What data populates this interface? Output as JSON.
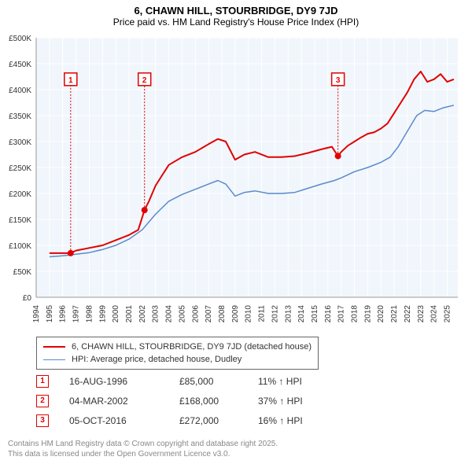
{
  "title_line1": "6, CHAWN HILL, STOURBRIDGE, DY9 7JD",
  "title_line2": "Price paid vs. HM Land Registry's House Price Index (HPI)",
  "chart": {
    "type": "line",
    "background_color": "#f0f6fc",
    "grid_color": "#ffffff",
    "xlim": [
      1994,
      2025.8
    ],
    "ylim": [
      0,
      500000
    ],
    "ytick_step": 50000,
    "yticks": [
      "£0",
      "£50K",
      "£100K",
      "£150K",
      "£200K",
      "£250K",
      "£300K",
      "£350K",
      "£400K",
      "£450K",
      "£500K"
    ],
    "xticks": [
      1994,
      1995,
      1996,
      1997,
      1998,
      1999,
      2000,
      2001,
      2002,
      2003,
      2004,
      2005,
      2006,
      2007,
      2008,
      2009,
      2010,
      2011,
      2012,
      2013,
      2014,
      2015,
      2016,
      2017,
      2018,
      2019,
      2020,
      2021,
      2022,
      2023,
      2024,
      2025
    ],
    "axis_fontsize": 11,
    "tick_fontsize": 10,
    "series": [
      {
        "name": "6, CHAWN HILL, STOURBRIDGE, DY9 7JD (detached house)",
        "color": "#e10000",
        "line_width": 2,
        "points": [
          [
            1995.0,
            85000
          ],
          [
            1996.6,
            85000
          ],
          [
            1997.0,
            90000
          ],
          [
            1998.0,
            95000
          ],
          [
            1999.0,
            100000
          ],
          [
            2000.0,
            110000
          ],
          [
            2001.0,
            120000
          ],
          [
            2001.7,
            130000
          ],
          [
            2002.17,
            168000
          ],
          [
            2002.5,
            185000
          ],
          [
            2003.0,
            215000
          ],
          [
            2003.5,
            235000
          ],
          [
            2004.0,
            255000
          ],
          [
            2005.0,
            270000
          ],
          [
            2006.0,
            280000
          ],
          [
            2007.0,
            295000
          ],
          [
            2007.7,
            305000
          ],
          [
            2008.3,
            300000
          ],
          [
            2009.0,
            265000
          ],
          [
            2009.7,
            275000
          ],
          [
            2010.5,
            280000
          ],
          [
            2011.5,
            270000
          ],
          [
            2012.5,
            270000
          ],
          [
            2013.5,
            272000
          ],
          [
            2014.5,
            278000
          ],
          [
            2015.5,
            285000
          ],
          [
            2016.3,
            290000
          ],
          [
            2016.76,
            272000
          ],
          [
            2017.0,
            280000
          ],
          [
            2017.5,
            292000
          ],
          [
            2018.0,
            300000
          ],
          [
            2018.5,
            308000
          ],
          [
            2019.0,
            315000
          ],
          [
            2019.5,
            318000
          ],
          [
            2020.0,
            325000
          ],
          [
            2020.5,
            335000
          ],
          [
            2021.0,
            355000
          ],
          [
            2021.5,
            375000
          ],
          [
            2022.0,
            395000
          ],
          [
            2022.5,
            420000
          ],
          [
            2023.0,
            435000
          ],
          [
            2023.5,
            415000
          ],
          [
            2024.0,
            420000
          ],
          [
            2024.5,
            430000
          ],
          [
            2025.0,
            415000
          ],
          [
            2025.5,
            420000
          ]
        ]
      },
      {
        "name": "HPI: Average price, detached house, Dudley",
        "color": "#5a8acb",
        "line_width": 1.5,
        "points": [
          [
            1995.0,
            78000
          ],
          [
            1996.0,
            80000
          ],
          [
            1997.0,
            83000
          ],
          [
            1998.0,
            86000
          ],
          [
            1999.0,
            92000
          ],
          [
            2000.0,
            100000
          ],
          [
            2001.0,
            112000
          ],
          [
            2002.0,
            130000
          ],
          [
            2003.0,
            160000
          ],
          [
            2004.0,
            185000
          ],
          [
            2005.0,
            198000
          ],
          [
            2006.0,
            208000
          ],
          [
            2007.0,
            218000
          ],
          [
            2007.7,
            225000
          ],
          [
            2008.3,
            218000
          ],
          [
            2009.0,
            195000
          ],
          [
            2009.7,
            202000
          ],
          [
            2010.5,
            205000
          ],
          [
            2011.5,
            200000
          ],
          [
            2012.5,
            200000
          ],
          [
            2013.5,
            202000
          ],
          [
            2014.5,
            210000
          ],
          [
            2015.5,
            218000
          ],
          [
            2016.5,
            225000
          ],
          [
            2017.0,
            230000
          ],
          [
            2018.0,
            242000
          ],
          [
            2019.0,
            250000
          ],
          [
            2020.0,
            260000
          ],
          [
            2020.7,
            270000
          ],
          [
            2021.3,
            290000
          ],
          [
            2022.0,
            320000
          ],
          [
            2022.7,
            350000
          ],
          [
            2023.3,
            360000
          ],
          [
            2024.0,
            358000
          ],
          [
            2024.7,
            365000
          ],
          [
            2025.5,
            370000
          ]
        ]
      }
    ],
    "markers": [
      {
        "n": "1",
        "x": 1996.6,
        "y": 85000,
        "marker_color": "#e10000",
        "label_y": 420000
      },
      {
        "n": "2",
        "x": 2002.17,
        "y": 168000,
        "marker_color": "#e10000",
        "label_y": 420000
      },
      {
        "n": "3",
        "x": 2016.76,
        "y": 272000,
        "marker_color": "#e10000",
        "label_y": 420000
      }
    ]
  },
  "legend": {
    "items": [
      {
        "color": "#e10000",
        "width": 2,
        "label": "6, CHAWN HILL, STOURBRIDGE, DY9 7JD (detached house)"
      },
      {
        "color": "#5a8acb",
        "width": 1.5,
        "label": "HPI: Average price, detached house, Dudley"
      }
    ]
  },
  "transactions": [
    {
      "n": "1",
      "color": "#e10000",
      "date": "16-AUG-1996",
      "price": "£85,000",
      "pct": "11% ↑ HPI"
    },
    {
      "n": "2",
      "color": "#e10000",
      "date": "04-MAR-2002",
      "price": "£168,000",
      "pct": "37% ↑ HPI"
    },
    {
      "n": "3",
      "color": "#e10000",
      "date": "05-OCT-2016",
      "price": "£272,000",
      "pct": "16% ↑ HPI"
    }
  ],
  "attribution": {
    "line1": "Contains HM Land Registry data © Crown copyright and database right 2025.",
    "line2": "This data is licensed under the Open Government Licence v3.0."
  }
}
